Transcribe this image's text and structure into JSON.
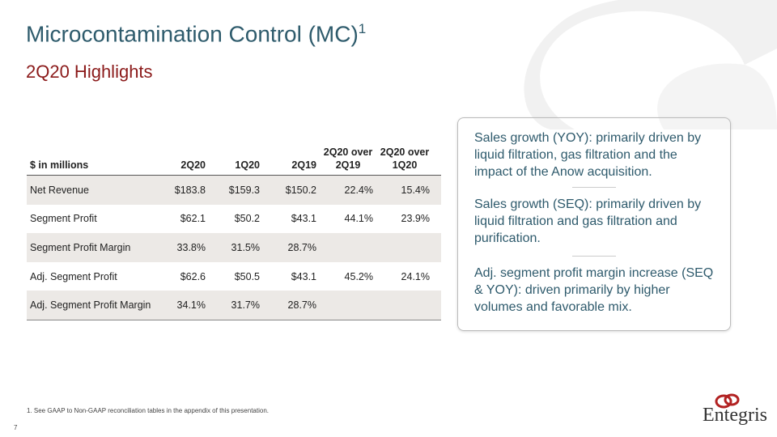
{
  "header": {
    "title": "Microcontamination Control (MC)",
    "title_sup": "1",
    "subtitle": "2Q20 Highlights"
  },
  "table": {
    "columns": [
      "$ in millions",
      "2Q20",
      "1Q20",
      "2Q19",
      "2Q20 over 2Q19",
      "2Q20 over 1Q20"
    ],
    "rows": [
      [
        "Net Revenue",
        "$183.8",
        "$159.3",
        "$150.2",
        "22.4%",
        "15.4%"
      ],
      [
        "Segment Profit",
        "$62.1",
        "$50.2",
        "$43.1",
        "44.1%",
        "23.9%"
      ],
      [
        "Segment Profit Margin",
        "33.8%",
        "31.5%",
        "28.7%"
      ],
      [
        "Adj. Segment Profit",
        "$62.6",
        "$50.5",
        "$43.1",
        "45.2%",
        "24.1%"
      ],
      [
        "Adj. Segment Profit Margin",
        "34.1%",
        "31.7%",
        "28.7%"
      ]
    ]
  },
  "notes": [
    "Sales growth (YOY): primarily driven by liquid filtration, gas filtration and the impact of the Anow acquisition.",
    "Sales growth (SEQ): primarily driven by liquid filtration and gas filtration and purification.",
    "Adj. segment profit margin increase (SEQ & YOY): driven primarily by higher volumes and favorable mix."
  ],
  "footnote": "1.  See GAAP to Non-GAAP reconciliation tables in the appendix of this presentation.",
  "page_number": "7",
  "logo": "Entegris"
}
